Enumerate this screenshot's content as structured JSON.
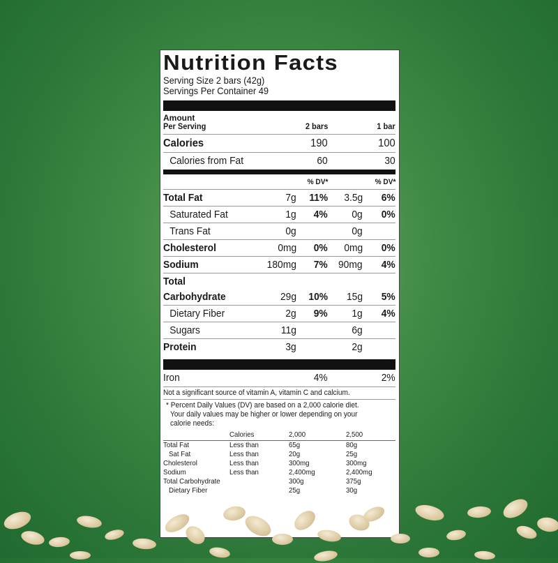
{
  "label": {
    "title": "Nutrition Facts",
    "serving_size": "Serving Size 2 bars (42g)",
    "servings_per_container": "Servings Per Container 49",
    "amount_line1": "Amount",
    "amount_line2": "Per Serving",
    "col1": "2 bars",
    "col2": "1 bar",
    "calories": {
      "label": "Calories",
      "v1": "190",
      "v2": "100"
    },
    "calories_fat": {
      "label": "Calories from Fat",
      "v1": "60",
      "v2": "30"
    },
    "dv_header": "% DV*",
    "rows": [
      {
        "label": "Total Fat",
        "a1": "7g",
        "d1": "11%",
        "a2": "3.5g",
        "d2": "6%"
      },
      {
        "label": "Saturated Fat",
        "a1": "1g",
        "d1": "4%",
        "a2": "0g",
        "d2": "0%"
      },
      {
        "label": "Trans Fat",
        "a1": "0g",
        "d1": "",
        "a2": "0g",
        "d2": ""
      },
      {
        "label": "Cholesterol",
        "a1": "0mg",
        "d1": "0%",
        "a2": "0mg",
        "d2": "0%"
      },
      {
        "label": "Sodium",
        "a1": "180mg",
        "d1": "7%",
        "a2": "90mg",
        "d2": "4%"
      },
      {
        "label": "Total",
        "label2": "Carbohydrate",
        "a1": "29g",
        "d1": "10%",
        "a2": "15g",
        "d2": "5%"
      },
      {
        "label": "Dietary Fiber",
        "a1": "2g",
        "d1": "9%",
        "a2": "1g",
        "d2": "4%"
      },
      {
        "label": "Sugars",
        "a1": "11g",
        "d1": "",
        "a2": "6g",
        "d2": ""
      },
      {
        "label": "Protein",
        "a1": "3g",
        "d1": "",
        "a2": "2g",
        "d2": ""
      }
    ],
    "iron": {
      "label": "Iron",
      "v1": "4%",
      "v2": "2%"
    },
    "not_significant": "Not a significant source of vitamin A, vitamin C and calcium.",
    "footnote": [
      "* Percent Daily Values (DV) are based on a 2,000 calorie diet.",
      "Your daily values may be higher or lower depending on your",
      "calorie needs:"
    ],
    "dv_table": {
      "header": [
        "",
        "Calories",
        "2,000",
        "2,500"
      ],
      "rows": [
        [
          "Total Fat",
          "Less than",
          "65g",
          "80g"
        ],
        [
          "Sat Fat",
          "Less than",
          "20g",
          "25g"
        ],
        [
          "Cholesterol",
          "Less than",
          "300mg",
          "300mg"
        ],
        [
          "Sodium",
          "Less than",
          "2,400mg",
          "2,400mg"
        ],
        [
          "Total Carbohydrate",
          "",
          "300g",
          "375g"
        ],
        [
          "Dietary Fiber",
          "",
          "25g",
          "30g"
        ]
      ]
    }
  },
  "colors": {
    "background": "#3f8a45",
    "label": "#ffffff",
    "ink": "#111111"
  }
}
